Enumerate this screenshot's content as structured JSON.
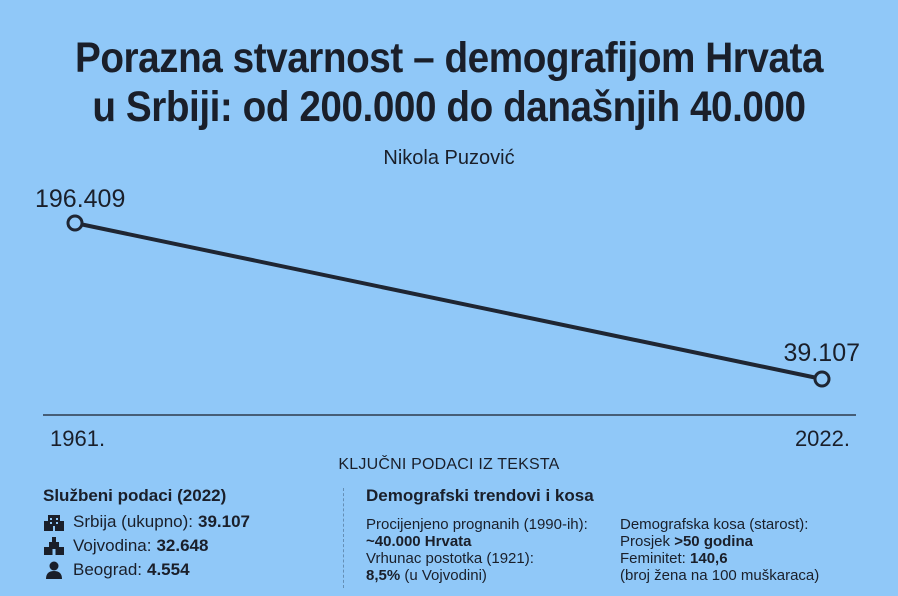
{
  "title_line1": "Porazna stvarnost – demografijom Hrvata",
  "title_line2": "u Srbiji: od 200.000 do današnjih 40.000",
  "author": "Nikola Puzović",
  "chart_data": {
    "type": "line",
    "x": [
      "1961.",
      "2022."
    ],
    "series": [
      {
        "values": [
          196409,
          39107
        ]
      }
    ],
    "value_labels": [
      "196.409",
      "39.107"
    ],
    "line_color": "#1f2633",
    "marker_fill": "#90c8f8"
  },
  "section_title": "KLJUČNI PODACI IZ TEKSTA",
  "official": {
    "heading": "Službeni podaci (2022)",
    "items": [
      {
        "label": "Srbija (ukupno):",
        "value": "39.107",
        "icon": "building-icon"
      },
      {
        "label": "Vojvodina:",
        "value": "32.648",
        "icon": "landmark-icon"
      },
      {
        "label": "Beograd:",
        "value": "4.554",
        "icon": "person-icon"
      }
    ]
  },
  "trends": {
    "heading": "Demografski trendovi i kosa",
    "expelled_label": "Procijenjeno prognanih (1990-ih):",
    "expelled_value": "~40.000 Hrvata",
    "peak_label": "Vrhunac postotka (1921):",
    "peak_value": "8,5%",
    "peak_note": "(u Vojvodini)",
    "age_label": "Demografska kosa (starost):",
    "avg_label": "Prosjek",
    "avg_value": ">50 godina",
    "fem_label": "Feminitet:",
    "fem_value": "140,6",
    "fem_note": "(broj žena na 100 muškaraca)"
  }
}
